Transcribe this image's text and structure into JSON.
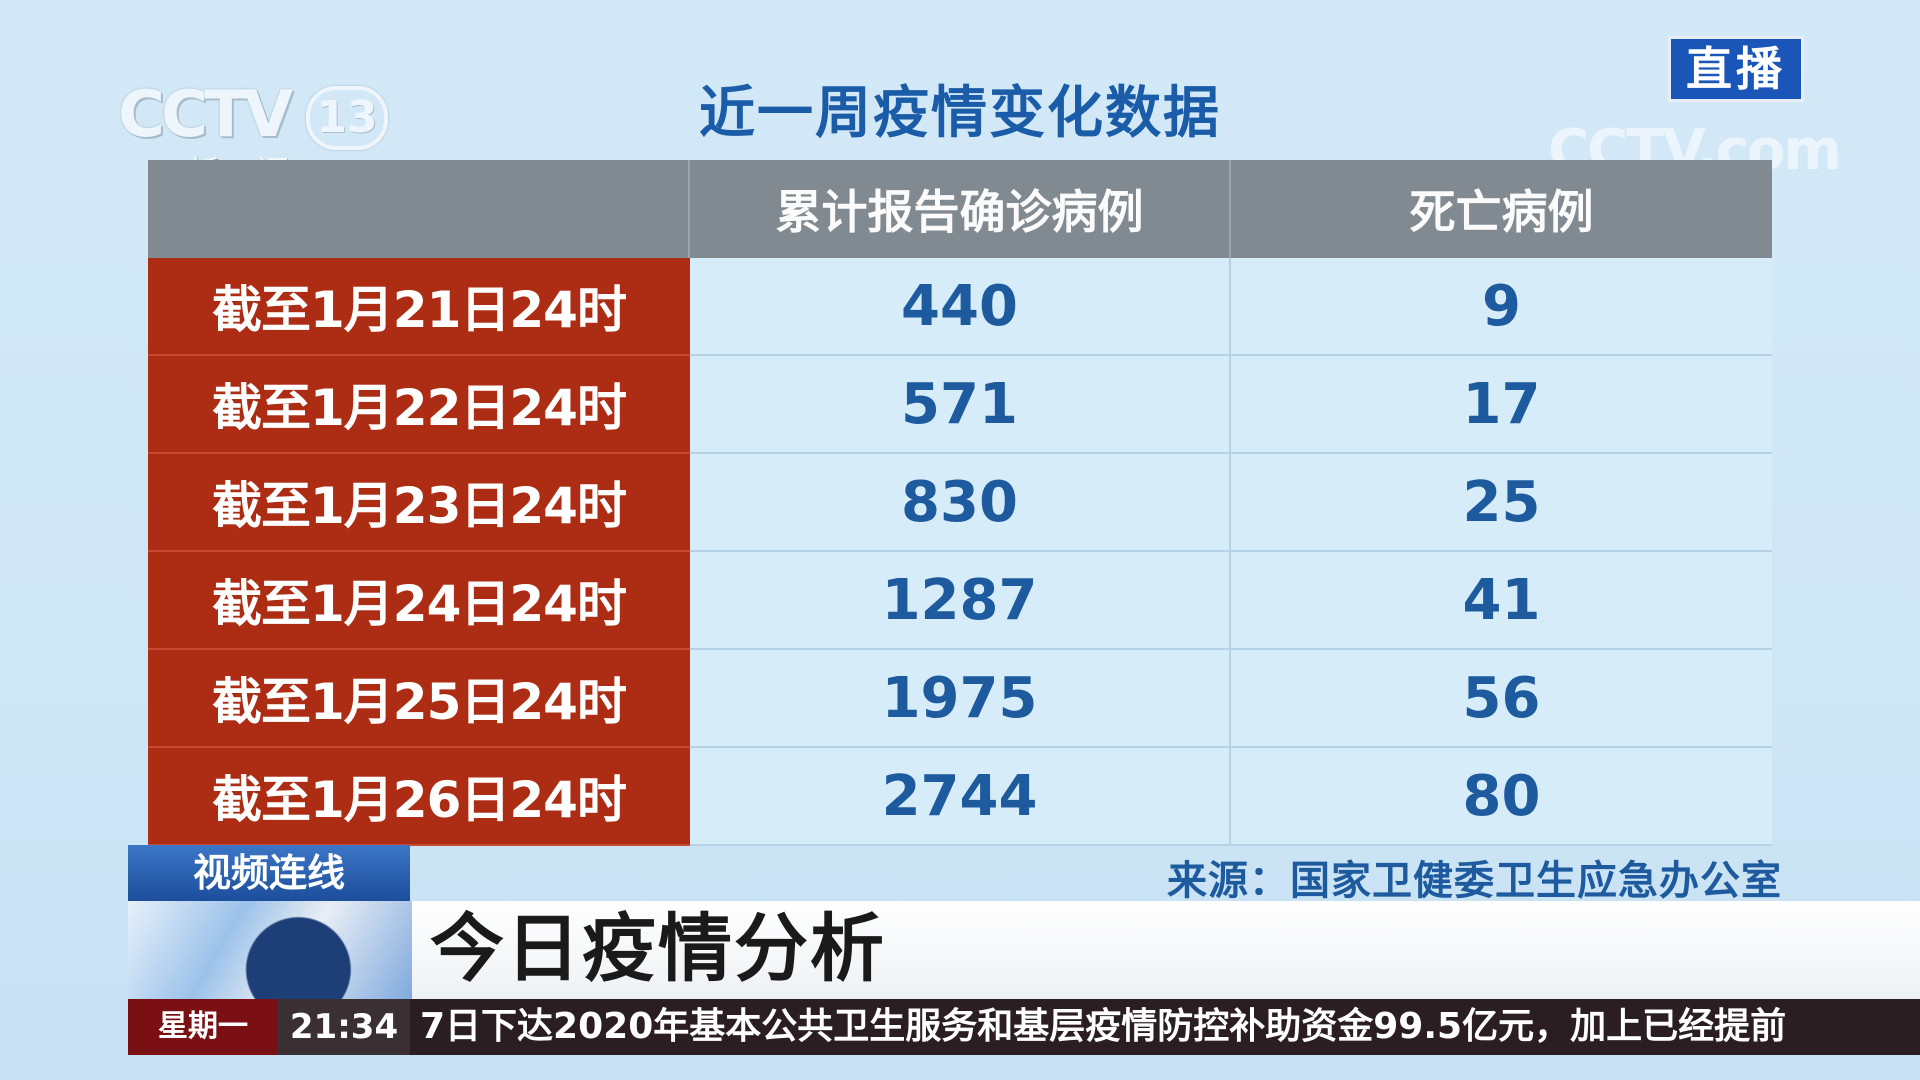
{
  "channel": {
    "logo_word": "CCTV",
    "logo_number": "13",
    "logo_sub": "新闻",
    "live_badge": "直播",
    "watermark": "CCTV.com"
  },
  "title": "近一周疫情变化数据",
  "table": {
    "headers": [
      "",
      "累计报告确诊病例",
      "死亡病例"
    ],
    "rows": [
      {
        "date": "截至1月21日24时",
        "confirmed": "440",
        "deaths": "9"
      },
      {
        "date": "截至1月22日24时",
        "confirmed": "571",
        "deaths": "17"
      },
      {
        "date": "截至1月23日24时",
        "confirmed": "830",
        "deaths": "25"
      },
      {
        "date": "截至1月24日24时",
        "confirmed": "1287",
        "deaths": "41"
      },
      {
        "date": "截至1月25日24时",
        "confirmed": "1975",
        "deaths": "56"
      },
      {
        "date": "截至1月26日24时",
        "confirmed": "2744",
        "deaths": "80"
      }
    ]
  },
  "source": "来源：国家卫健委卫生应急办公室",
  "lower_third": {
    "tag": "视频连线",
    "headline": "今日疫情分析"
  },
  "ticker": {
    "day": "星期一",
    "time": "21:34",
    "text": "7日下达2020年基本公共卫生服务和基层疫情防控补助资金99.5亿元，加上已经提前"
  },
  "colors": {
    "background": "#d3e9f7",
    "title_blue": "#1a5ca8",
    "header_gray": "#818a90",
    "date_red": "#ad2c14",
    "value_blue": "#1e5a9e",
    "live_blue": "#1a56b7"
  }
}
